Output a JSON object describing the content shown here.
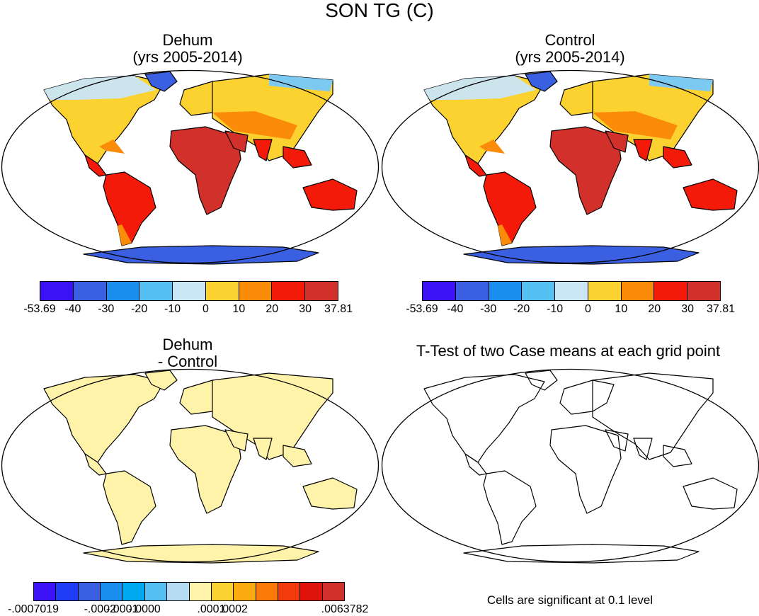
{
  "title": "SON TG (C)",
  "panels": {
    "dehum": {
      "title_line1": "Dehum",
      "title_line2": "(yrs 2005-2014)"
    },
    "control": {
      "title_line1": "Control",
      "title_line2": "(yrs 2005-2014)"
    },
    "diff": {
      "title_line1": "Dehum",
      "title_line2": "- Control"
    },
    "ttest": {
      "title": "T-Test of two Case means at each grid point",
      "note": "Cells are significant at 0.1 level"
    }
  },
  "colorbar_top": {
    "colors": [
      "#3b12f5",
      "#3a5fe0",
      "#1b8ff0",
      "#56c0f2",
      "#cbe7f6",
      "#fcd231",
      "#fb8c0a",
      "#f31a0a",
      "#d2302b"
    ],
    "labels": [
      "-53.69",
      "-40",
      "-30",
      "-20",
      "-10",
      "0",
      "10",
      "20",
      "30",
      "37.81"
    ]
  },
  "colorbar_diff": {
    "colors": [
      "#3b12f5",
      "#1e3cf3",
      "#3a5fe0",
      "#1b8ff0",
      "#00aaf0",
      "#56c0f2",
      "#b6dcf4",
      "#fff3aa",
      "#fcd231",
      "#fbaa10",
      "#fb7a0a",
      "#f33a0a",
      "#e0140a",
      "#d2302b"
    ],
    "labels": [
      "-.0007019",
      "-.0002",
      "-.0001",
      "-.0000",
      ".0001",
      ".0002",
      ".0063782"
    ],
    "label_slots": [
      0,
      3,
      4,
      5,
      8,
      9,
      13
    ]
  },
  "colors": {
    "cold": "#c9e6f8",
    "cool": "#7ccaf2",
    "mid": "#fcd231",
    "warm": "#fb8c0a",
    "hot": "#f31a0a",
    "hottest": "#d2302b",
    "ice": "#3a5fe0",
    "diff_fill": "#fff3aa"
  }
}
